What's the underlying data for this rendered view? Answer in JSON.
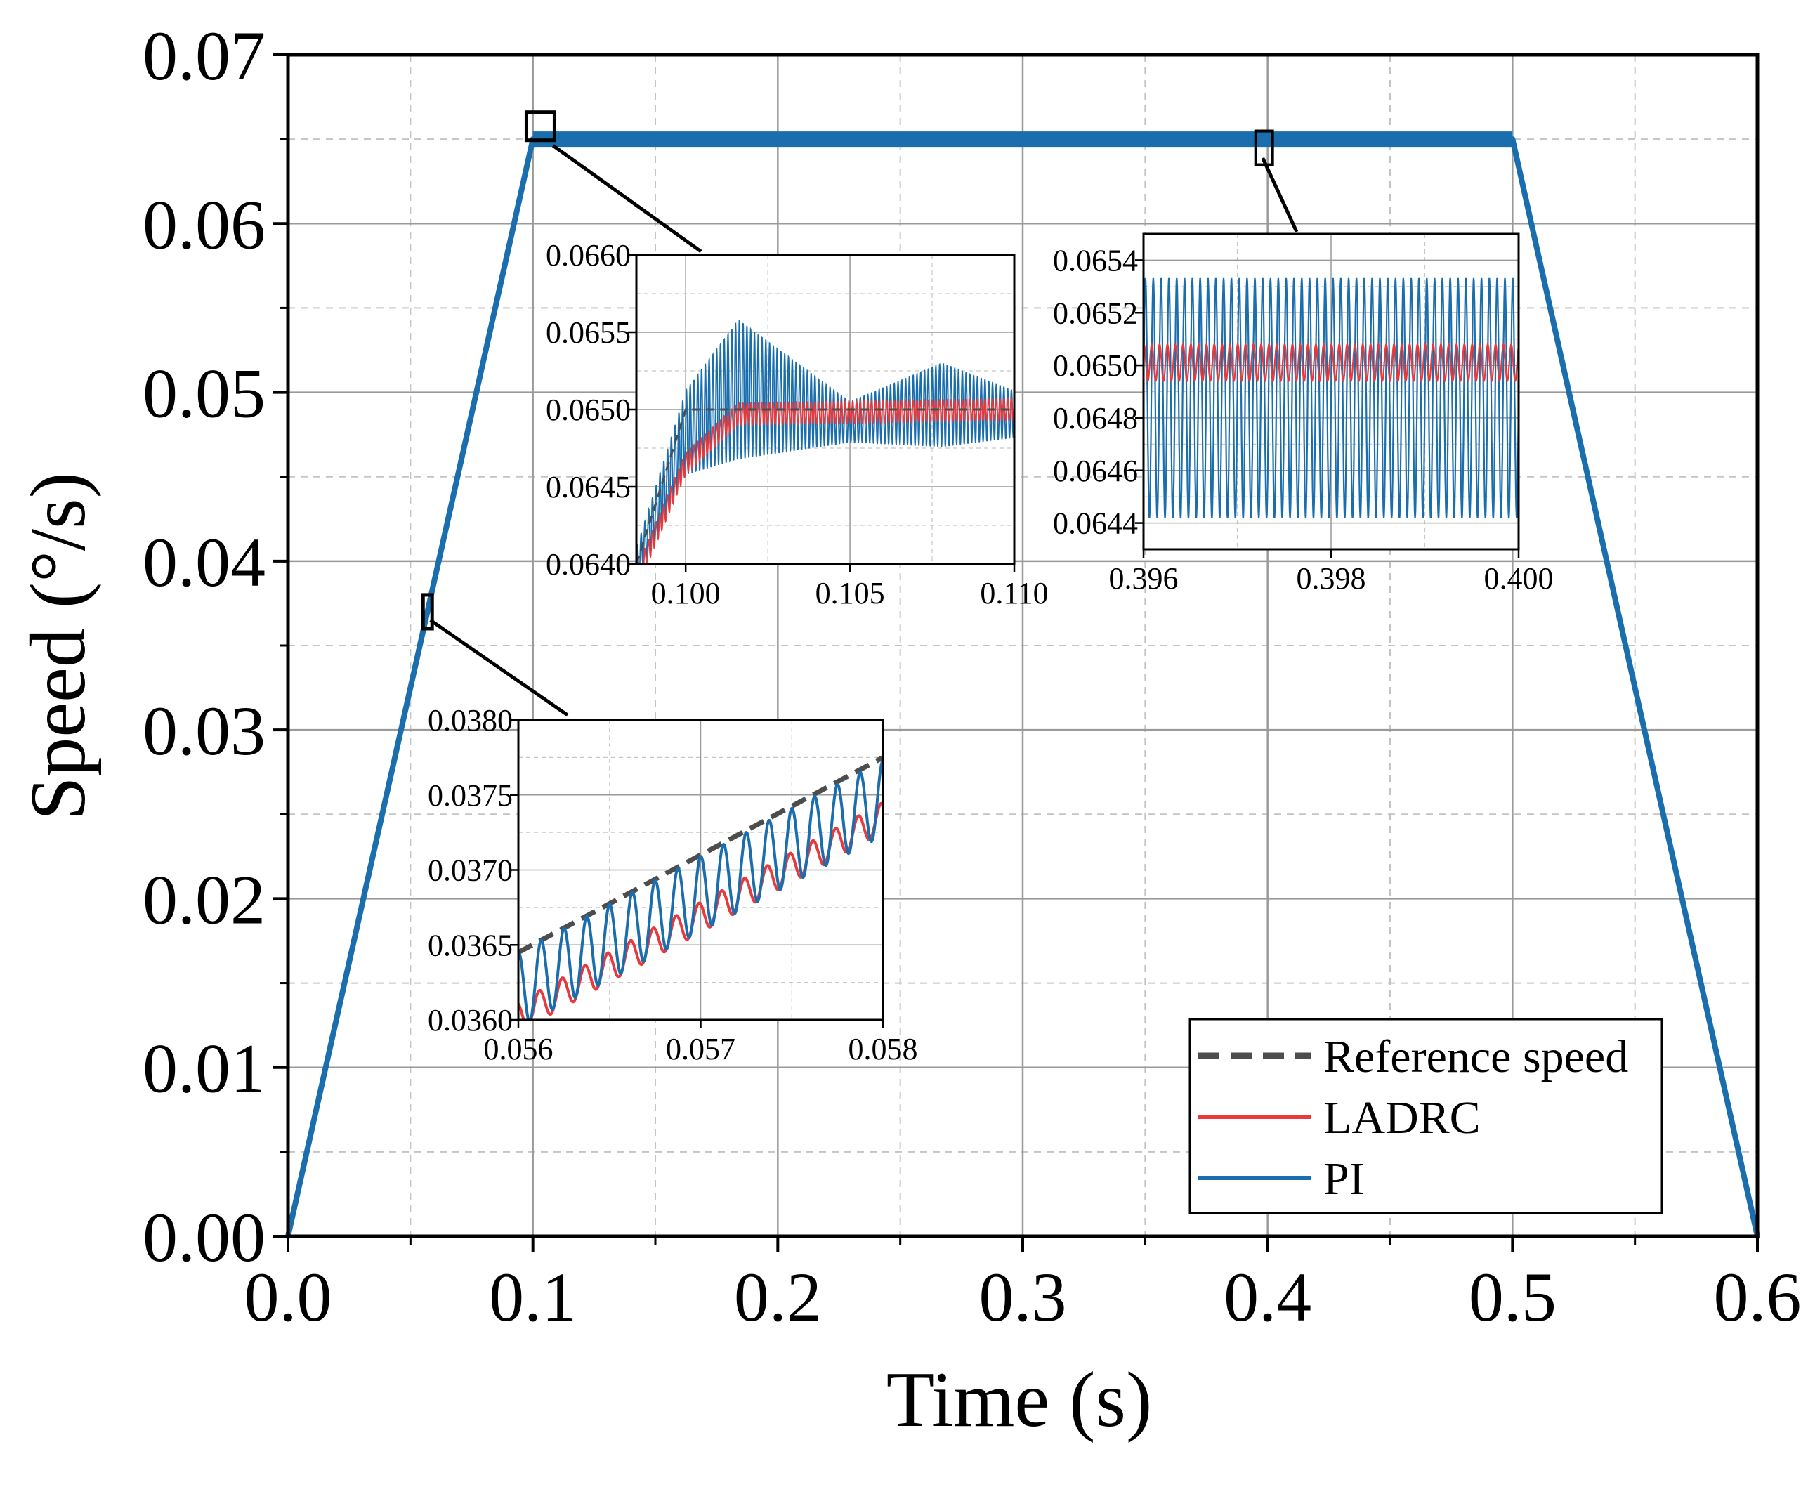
{
  "colors": {
    "reference": "#4d4d4d",
    "ladrc": "#e8393c",
    "pi": "#1a6ead",
    "axis": "#000000",
    "grid_major": "#9a9a9a",
    "grid_minor": "#c4c4c4"
  },
  "chart_data": [
    {
      "id": "main",
      "type": "line",
      "title": "",
      "xlabel": "Time (s)",
      "ylabel": "Speed (°/s)",
      "xlim": [
        0,
        0.6
      ],
      "ylim": [
        0,
        0.07
      ],
      "xticks": [
        0,
        0.1,
        0.2,
        0.3,
        0.4,
        0.5,
        0.6
      ],
      "xtick_labels": [
        "0.0",
        "0.1",
        "0.2",
        "0.3",
        "0.4",
        "0.5",
        "0.6"
      ],
      "yticks": [
        0,
        0.01,
        0.02,
        0.03,
        0.04,
        0.05,
        0.06,
        0.07
      ],
      "ytick_labels": [
        "0.00",
        "0.01",
        "0.02",
        "0.03",
        "0.04",
        "0.05",
        "0.06",
        "0.07"
      ],
      "grid": true,
      "legend": {
        "position": "bottom-right",
        "entries": [
          "Reference speed",
          "LADRC",
          "PI"
        ]
      },
      "series": [
        {
          "name": "Reference speed",
          "style": "dashed",
          "x": [
            0,
            0.1,
            0.5,
            0.6
          ],
          "y": [
            0,
            0.065,
            0.065,
            0
          ]
        },
        {
          "name": "LADRC",
          "style": "solid",
          "x": [
            0,
            0.1,
            0.5,
            0.6
          ],
          "y": [
            0,
            0.065,
            0.065,
            0
          ]
        },
        {
          "name": "PI",
          "style": "solid",
          "x": [
            0,
            0.1,
            0.5,
            0.6
          ],
          "y": [
            0,
            0.065,
            0.065,
            0
          ]
        }
      ],
      "zoom_regions": [
        {
          "x": [
            0.056,
            0.058
          ],
          "y": [
            0.036,
            0.038
          ]
        },
        {
          "x": [
            0.0985,
            0.11
          ],
          "y": [
            0.064,
            0.066
          ]
        },
        {
          "x": [
            0.396,
            0.4
          ],
          "y": [
            0.0644,
            0.0654
          ]
        }
      ]
    },
    {
      "id": "inset-accel",
      "type": "line",
      "xlim": [
        0.056,
        0.058
      ],
      "ylim": [
        0.036,
        0.038
      ],
      "xticks": [
        0.056,
        0.057,
        0.058
      ],
      "xtick_labels": [
        "0.056",
        "0.057",
        "0.058"
      ],
      "yticks": [
        0.036,
        0.0365,
        0.037,
        0.0375,
        0.038
      ],
      "ytick_labels": [
        "0.0360",
        "0.0365",
        "0.0370",
        "0.0375",
        "0.0380"
      ],
      "series": [
        {
          "name": "Reference speed",
          "x": [
            0.056,
            0.058
          ],
          "y": [
            0.03645,
            0.03775
          ]
        },
        {
          "name": "LADRC",
          "x": [
            0.056,
            0.058
          ],
          "y_mean": [
            0.03602,
            0.03735
          ],
          "ripple_amplitude": 0.0001,
          "ripple_cycles": 16
        },
        {
          "name": "PI",
          "x": [
            0.056,
            0.058
          ],
          "y_mean": [
            0.0362,
            0.03748
          ],
          "ripple_amplitude": 0.00025,
          "ripple_cycles": 16
        }
      ]
    },
    {
      "id": "inset-settle",
      "type": "line",
      "xlim": [
        0.0985,
        0.11
      ],
      "ylim": [
        0.064,
        0.066
      ],
      "xticks": [
        0.1,
        0.105,
        0.11
      ],
      "xtick_labels": [
        "0.100",
        "0.105",
        "0.110"
      ],
      "yticks": [
        0.064,
        0.0645,
        0.065,
        0.0655,
        0.066
      ],
      "ytick_labels": [
        "0.0640",
        "0.0645",
        "0.0650",
        "0.0655",
        "0.0660"
      ],
      "series": [
        {
          "name": "Reference speed",
          "x": [
            0.0985,
            0.1,
            0.11
          ],
          "y": [
            0.064,
            0.065,
            0.065
          ]
        },
        {
          "name": "LADRC",
          "x": [
            0.0987,
            0.1,
            0.1016,
            0.11
          ],
          "y": [
            0.064,
            0.06465,
            0.06497,
            0.065
          ],
          "ripple_amplitude": 7e-05,
          "ripple_cycles": 100
        },
        {
          "name": "PI",
          "x": [
            0.0985,
            0.1,
            0.1016,
            0.105,
            0.1078,
            0.11
          ],
          "y": [
            0.064,
            0.06485,
            0.06513,
            0.06492,
            0.06503,
            0.06497
          ],
          "ripple_amplitude": [
            0.0001,
            0.00045,
            0.00013,
            0.00027,
            0.00015
          ],
          "ripple_cycles": 100
        }
      ]
    },
    {
      "id": "inset-steady",
      "type": "line",
      "xlim": [
        0.396,
        0.4
      ],
      "ylim": [
        0.0643,
        0.0655
      ],
      "xticks": [
        0.396,
        0.398,
        0.4
      ],
      "xtick_labels": [
        "0.396",
        "0.398",
        "0.400"
      ],
      "yticks": [
        0.0644,
        0.0646,
        0.0648,
        0.065,
        0.0652,
        0.0654
      ],
      "ytick_labels": [
        "0.0644",
        "0.0646",
        "0.0648",
        "0.0650",
        "0.0652",
        "0.0654"
      ],
      "series": [
        {
          "name": "LADRC",
          "x": [
            0.396,
            0.4
          ],
          "y_mean": 0.065,
          "y_range": [
            0.06494,
            0.06508
          ],
          "ripple_cycles": 48
        },
        {
          "name": "PI",
          "x": [
            0.396,
            0.4
          ],
          "y_mean": 0.06488,
          "y_range": [
            0.06442,
            0.06533
          ],
          "ripple_cycles": 48
        }
      ]
    }
  ]
}
